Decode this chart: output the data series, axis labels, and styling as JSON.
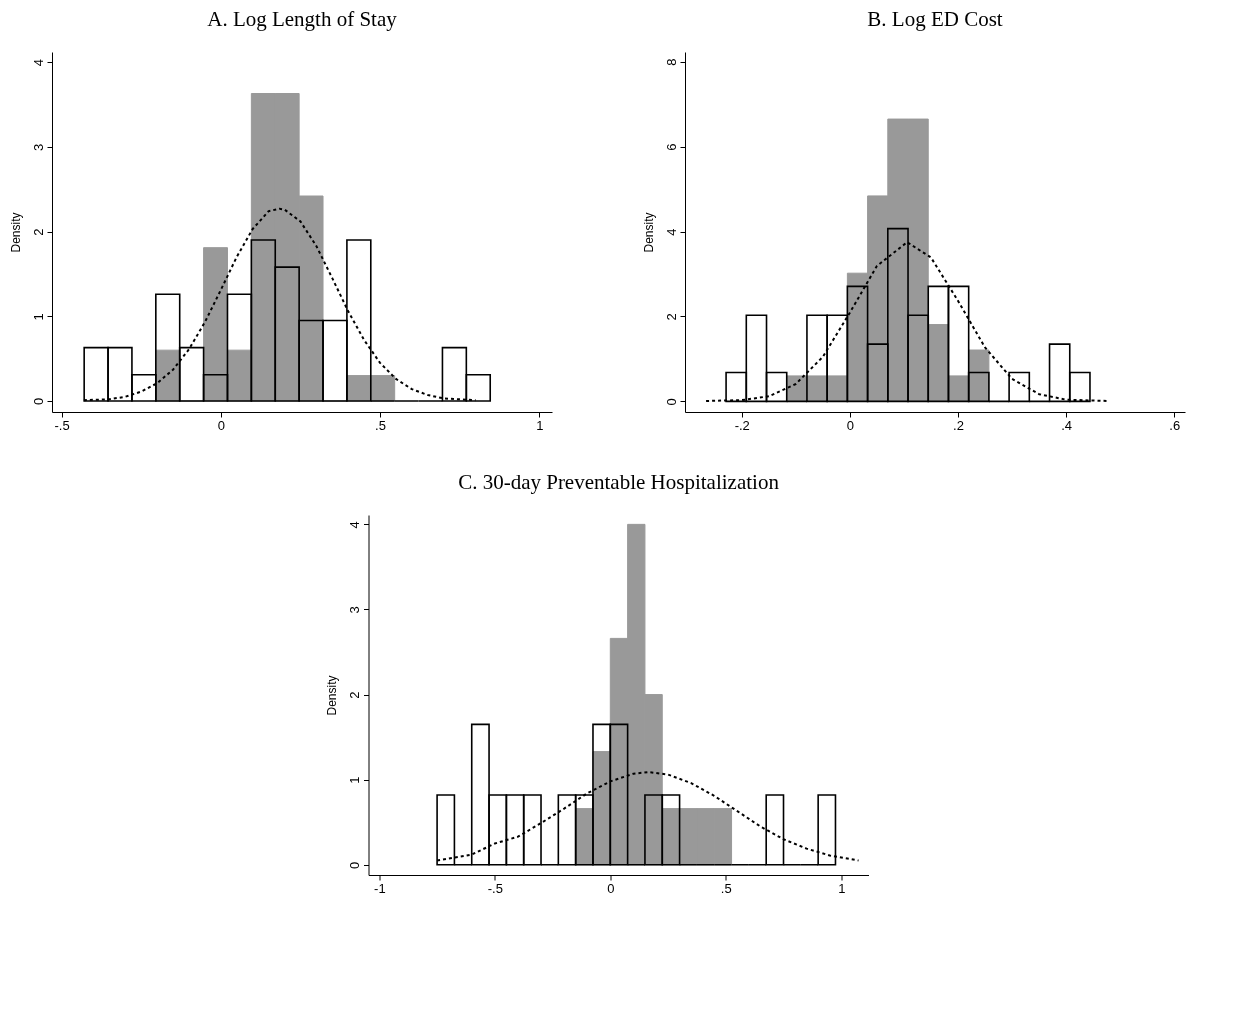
{
  "chart_data": [
    {
      "type": "histogram",
      "title": "A. Log Length of Stay",
      "ylabel": "Density",
      "xlim": [
        -0.53,
        1.04
      ],
      "ylim": [
        -0.13,
        4.12
      ],
      "xticks": [
        {
          "value": -0.5,
          "label": "-.5"
        },
        0,
        {
          "value": 0.5,
          "label": ".5"
        },
        1
      ],
      "yticks": [
        0,
        1,
        2,
        3,
        4
      ],
      "line_style": "dashed",
      "series": [
        {
          "color": "#999999",
          "bins": [
            -0.204,
            -0.129,
            -0.054,
            0.021,
            0.096,
            0.171,
            0.246,
            0.321,
            0.396,
            0.471,
            0.546
          ],
          "values": [
            0.6,
            0,
            1.81,
            0.6,
            3.63,
            3.63,
            2.42,
            0,
            0.3,
            0.3
          ]
        },
        {
          "color": "#000000",
          "bins": [
            -0.429,
            -0.354,
            -0.279,
            -0.204,
            -0.129,
            -0.054,
            0.021,
            0.096,
            0.171,
            0.246,
            0.321,
            0.396,
            0.471,
            0.546,
            0.621,
            0.696,
            0.771,
            0.846
          ],
          "values": [
            0.63,
            0.63,
            0.31,
            1.26,
            0.63,
            0.31,
            1.26,
            1.9,
            1.58,
            0.95,
            0.95,
            1.9,
            0,
            0,
            0,
            0.63,
            0.31
          ]
        },
        {
          "type": "line",
          "color": "#000000",
          "x": [
            -0.43,
            -0.35,
            -0.3,
            -0.25,
            -0.2,
            -0.15,
            -0.1,
            -0.05,
            0,
            0.05,
            0.1,
            0.15,
            0.184,
            0.2,
            0.25,
            0.3,
            0.35,
            0.4,
            0.45,
            0.5,
            0.55,
            0.6,
            0.65,
            0.7,
            0.8
          ],
          "values": [
            0.01,
            0.02,
            0.05,
            0.11,
            0.21,
            0.37,
            0.61,
            0.93,
            1.31,
            1.7,
            2.03,
            2.24,
            2.27,
            2.26,
            2.12,
            1.83,
            1.45,
            1.06,
            0.72,
            0.45,
            0.26,
            0.14,
            0.07,
            0.03,
            0.01
          ]
        }
      ]
    },
    {
      "type": "histogram",
      "title": "B. Log ED Cost",
      "ylabel": "Density",
      "xlim": [
        -0.305,
        0.62
      ],
      "ylim": [
        -0.25,
        8.23
      ],
      "xticks": [
        {
          "value": -0.2,
          "label": "-.2"
        },
        0,
        {
          "value": 0.2,
          "label": ".2"
        },
        {
          "value": 0.4,
          "label": ".4"
        },
        {
          "value": 0.6,
          "label": ".6"
        }
      ],
      "yticks": [
        0,
        2,
        4,
        6,
        8
      ],
      "line_style": "dashed",
      "series": [
        {
          "color": "#999999",
          "bins": [
            -0.1168,
            -0.0794,
            -0.042,
            -0.0046,
            0.0328,
            0.0702,
            0.1076,
            0.145,
            0.1824,
            0.2198,
            0.2572
          ],
          "values": [
            0.6,
            0.6,
            0.6,
            3.02,
            4.84,
            6.65,
            6.65,
            1.81,
            0.6,
            1.21
          ]
        },
        {
          "color": "#000000",
          "bins": [
            -0.229,
            -0.1916,
            -0.1542,
            -0.1168,
            -0.0794,
            -0.042,
            -0.0046,
            0.0328,
            0.0702,
            0.1076,
            0.145,
            0.1824,
            0.2198,
            0.2572,
            0.2946,
            0.332,
            0.3694,
            0.4068,
            0.4442
          ],
          "values": [
            0.68,
            2.03,
            0.68,
            0,
            2.03,
            2.03,
            2.71,
            1.35,
            4.07,
            2.03,
            2.71,
            2.71,
            0.68,
            0,
            0.68,
            0,
            1.35,
            0.68
          ]
        },
        {
          "type": "line",
          "color": "#000000",
          "x": [
            -0.266,
            -0.2,
            -0.15,
            -0.1,
            -0.05,
            0,
            0.05,
            0.106,
            0.15,
            0.2,
            0.25,
            0.3,
            0.35,
            0.4,
            0.476
          ],
          "values": [
            0.01,
            0.03,
            0.12,
            0.41,
            1.05,
            2.09,
            3.19,
            3.75,
            3.39,
            2.37,
            1.27,
            0.53,
            0.17,
            0.04,
            0.01
          ]
        }
      ]
    },
    {
      "type": "histogram",
      "title": "C. 30-day Preventable Hospitalization",
      "ylabel": "Density",
      "xlim": [
        -1.047,
        1.118
      ],
      "ylim": [
        -0.12,
        4.11
      ],
      "xticks": [
        -1,
        {
          "value": -0.5,
          "label": "-.5"
        },
        0,
        {
          "value": 0.5,
          "label": ".5"
        },
        1
      ],
      "yticks": [
        0,
        1,
        2,
        3,
        4
      ],
      "line_style": "dashed",
      "series": [
        {
          "color": "#999999",
          "bins": [
            -0.15,
            -0.075,
            0,
            0.075,
            0.15,
            0.225,
            0.3,
            0.375,
            0.45,
            0.525
          ],
          "values": [
            0.66,
            1.33,
            2.66,
            4.0,
            2.0,
            0.66,
            0.66,
            0.66,
            0.66
          ]
        },
        {
          "color": "#000000",
          "bins": [
            -0.75,
            -0.675,
            -0.6,
            -0.525,
            -0.45,
            -0.375,
            -0.3,
            -0.225,
            -0.15,
            -0.075,
            0,
            0.075,
            0.15,
            0.225,
            0.3,
            0.375,
            0.45,
            0.525,
            0.6,
            0.675,
            0.75,
            0.825,
            0.9,
            0.975
          ],
          "values": [
            0.82,
            0,
            1.65,
            0.82,
            0.82,
            0.82,
            0,
            0.82,
            0.82,
            1.65,
            1.65,
            0,
            0.82,
            0.82,
            0,
            0,
            0,
            0,
            0,
            0.82,
            0,
            0,
            0.82
          ]
        },
        {
          "type": "line",
          "color": "#000000",
          "x": [
            -0.75,
            -0.6,
            -0.5,
            -0.4,
            -0.3,
            -0.2,
            -0.1,
            0,
            0.1,
            0.165,
            0.25,
            0.35,
            0.45,
            0.55,
            0.65,
            0.75,
            0.85,
            0.95,
            1.075
          ],
          "values": [
            0.05,
            0.12,
            0.25,
            0.33,
            0.49,
            0.66,
            0.84,
            0.98,
            1.07,
            1.09,
            1.06,
            0.96,
            0.81,
            0.63,
            0.45,
            0.3,
            0.19,
            0.11,
            0.05
          ]
        }
      ]
    }
  ]
}
